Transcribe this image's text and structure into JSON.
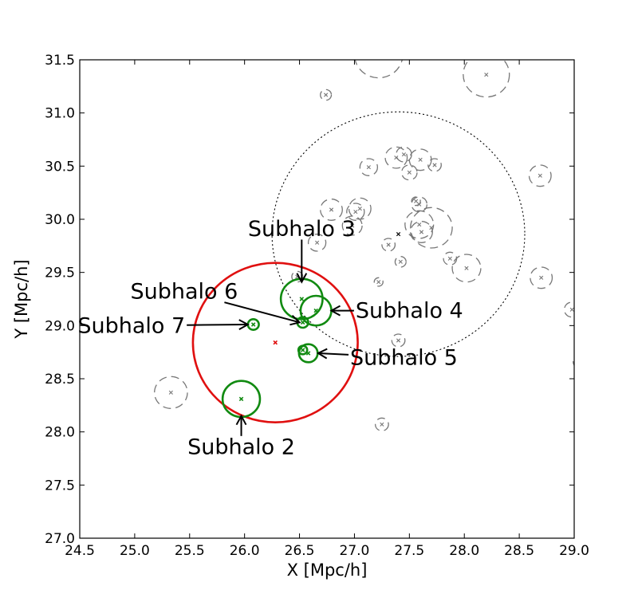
{
  "chart_data": {
    "type": "scatter",
    "xlabel": "X [Mpc/h]",
    "ylabel": "Y [Mpc/h]",
    "xlim": [
      24.5,
      29.0
    ],
    "ylim": [
      27.0,
      31.5
    ],
    "xticks": [
      "24.5",
      "25.0",
      "25.5",
      "26.0",
      "26.5",
      "27.0",
      "27.5",
      "28.0",
      "28.5",
      "29.0"
    ],
    "yticks": [
      "27.0",
      "27.5",
      "28.0",
      "28.5",
      "29.0",
      "29.5",
      "30.0",
      "30.5",
      "31.0",
      "31.5"
    ],
    "grid": false,
    "colors": {
      "host": "#e01010",
      "subhalo": "#118a11",
      "other": "#777777",
      "region": "#000000"
    },
    "host_halo": {
      "x": 26.28,
      "y": 28.84,
      "radius": 0.75
    },
    "search_region": {
      "x": 27.4,
      "y": 29.86,
      "radius": 1.15
    },
    "subhalos": [
      {
        "x": 25.97,
        "y": 28.31,
        "radius": 0.17
      },
      {
        "x": 26.52,
        "y": 29.25,
        "radius": 0.19
      },
      {
        "x": 26.65,
        "y": 29.14,
        "radius": 0.14
      },
      {
        "x": 26.58,
        "y": 28.74,
        "radius": 0.085
      },
      {
        "x": 26.53,
        "y": 28.77,
        "radius": 0.04
      },
      {
        "x": 26.53,
        "y": 29.03,
        "radius": 0.05
      },
      {
        "x": 26.08,
        "y": 29.01,
        "radius": 0.05
      }
    ],
    "other_halos": [
      {
        "x": 27.22,
        "y": 31.55,
        "radius": 0.22
      },
      {
        "x": 28.2,
        "y": 31.36,
        "radius": 0.21
      },
      {
        "x": 26.74,
        "y": 31.17,
        "radius": 0.05
      },
      {
        "x": 27.45,
        "y": 30.61,
        "radius": 0.07
      },
      {
        "x": 27.38,
        "y": 30.58,
        "radius": 0.1
      },
      {
        "x": 27.6,
        "y": 30.56,
        "radius": 0.1
      },
      {
        "x": 27.13,
        "y": 30.49,
        "radius": 0.08
      },
      {
        "x": 27.5,
        "y": 30.44,
        "radius": 0.07
      },
      {
        "x": 27.73,
        "y": 30.51,
        "radius": 0.06
      },
      {
        "x": 28.69,
        "y": 30.41,
        "radius": 0.1
      },
      {
        "x": 27.56,
        "y": 30.17,
        "radius": 0.04
      },
      {
        "x": 27.59,
        "y": 30.14,
        "radius": 0.07
      },
      {
        "x": 26.79,
        "y": 30.09,
        "radius": 0.1
      },
      {
        "x": 27.05,
        "y": 30.1,
        "radius": 0.1
      },
      {
        "x": 27.01,
        "y": 30.07,
        "radius": 0.08
      },
      {
        "x": 26.98,
        "y": 29.94,
        "radius": 0.09
      },
      {
        "x": 27.59,
        "y": 29.95,
        "radius": 0.13
      },
      {
        "x": 27.61,
        "y": 29.88,
        "radius": 0.1
      },
      {
        "x": 27.7,
        "y": 29.92,
        "radius": 0.19
      },
      {
        "x": 26.66,
        "y": 29.78,
        "radius": 0.08
      },
      {
        "x": 27.31,
        "y": 29.76,
        "radius": 0.06
      },
      {
        "x": 27.42,
        "y": 29.6,
        "radius": 0.05
      },
      {
        "x": 27.87,
        "y": 29.63,
        "radius": 0.06
      },
      {
        "x": 28.02,
        "y": 29.54,
        "radius": 0.13
      },
      {
        "x": 28.7,
        "y": 29.45,
        "radius": 0.1
      },
      {
        "x": 27.22,
        "y": 29.41,
        "radius": 0.04
      },
      {
        "x": 28.98,
        "y": 29.15,
        "radius": 0.07
      },
      {
        "x": 26.48,
        "y": 29.46,
        "radius": 0.05
      },
      {
        "x": 27.4,
        "y": 28.86,
        "radius": 0.06
      },
      {
        "x": 25.33,
        "y": 28.37,
        "radius": 0.15
      },
      {
        "x": 27.25,
        "y": 28.07,
        "radius": 0.06
      },
      {
        "x": 29.05,
        "y": 28.66,
        "radius": 0.06
      }
    ],
    "annotations": [
      {
        "text": "Subhalo 3",
        "text_x": 26.52,
        "text_y": 29.91,
        "tip_x": 26.52,
        "tip_y": 29.41
      },
      {
        "text": "Subhalo 6",
        "text_x": 25.45,
        "text_y": 29.32,
        "tip_x": 26.5,
        "tip_y": 29.03
      },
      {
        "text": "Subhalo 4",
        "text_x": 27.5,
        "text_y": 29.14,
        "tip_x": 26.79,
        "tip_y": 29.14
      },
      {
        "text": "Subhalo 7",
        "text_x": 24.97,
        "text_y": 29.0,
        "tip_x": 26.03,
        "tip_y": 29.01
      },
      {
        "text": "Subhalo 5",
        "text_x": 27.45,
        "text_y": 28.7,
        "tip_x": 26.67,
        "tip_y": 28.74
      },
      {
        "text": "Subhalo 2",
        "text_x": 25.97,
        "text_y": 27.86,
        "tip_x": 25.97,
        "tip_y": 28.15
      }
    ]
  }
}
